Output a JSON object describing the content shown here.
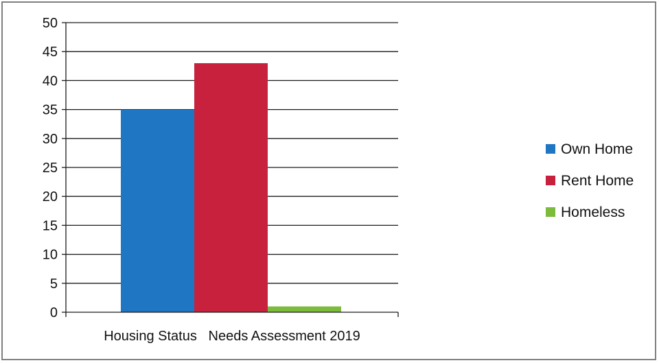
{
  "chart_data": {
    "type": "bar",
    "title": "",
    "xlabel": "",
    "ylabel": "",
    "categories": [
      "Housing Status   Needs Assessment 2019"
    ],
    "series": [
      {
        "name": "Own Home",
        "values": [
          35
        ],
        "color": "#1f77c4"
      },
      {
        "name": "Rent Home",
        "values": [
          43
        ],
        "color": "#c8213d"
      },
      {
        "name": "Homeless",
        "values": [
          1
        ],
        "color": "#7dbb3c"
      }
    ],
    "ylim": [
      0,
      50
    ],
    "yticks": [
      0,
      5,
      10,
      15,
      20,
      25,
      30,
      35,
      40,
      45,
      50
    ],
    "grid": true,
    "legend_position": "right"
  }
}
